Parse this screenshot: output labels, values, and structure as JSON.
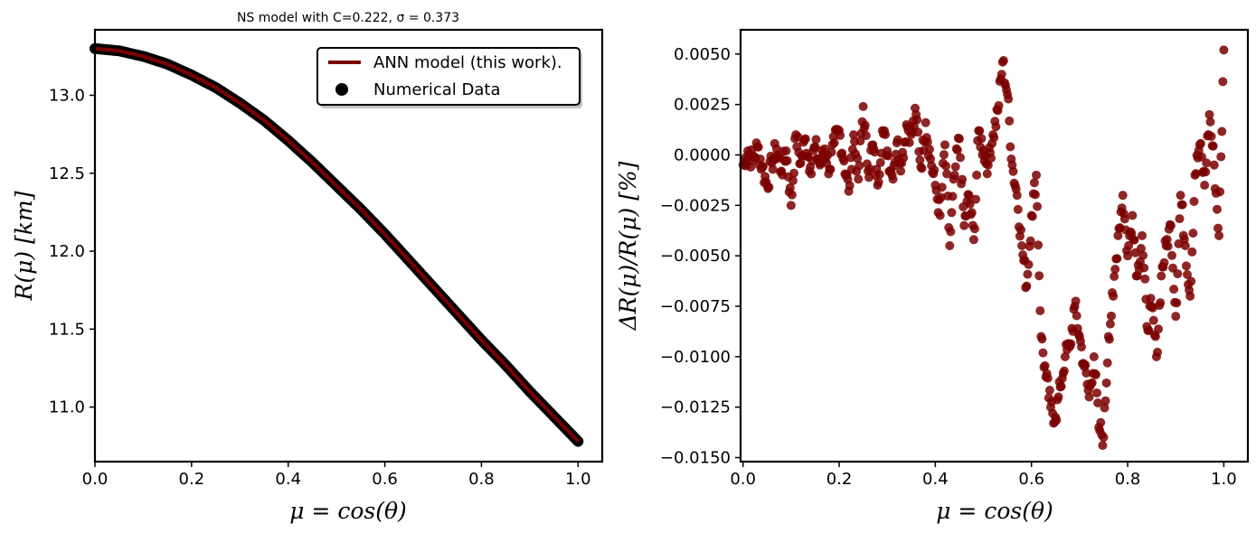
{
  "figure": {
    "title_left": "NS model with C=0.222, σ = 0.373"
  },
  "chart_data": [
    {
      "type": "line",
      "title": "NS model with C=0.222, σ = 0.373",
      "xlabel": "μ = cos(θ)",
      "ylabel": "R(μ) [km]",
      "xlim": [
        0.0,
        1.05
      ],
      "ylim": [
        10.65,
        13.42
      ],
      "xticks": [
        "0.0",
        "0.2",
        "0.4",
        "0.6",
        "0.8",
        "1.0"
      ],
      "yticks": [
        "11.0",
        "11.5",
        "12.0",
        "12.5",
        "13.0"
      ],
      "legend": {
        "position": "upper right",
        "entries": [
          "ANN model (this work).",
          "Numerical Data"
        ]
      },
      "series": [
        {
          "name": "ANN model (this work).",
          "kind": "line",
          "color": "#7b0000",
          "x": [
            0.0,
            0.05,
            0.1,
            0.15,
            0.2,
            0.25,
            0.3,
            0.35,
            0.4,
            0.45,
            0.5,
            0.55,
            0.6,
            0.65,
            0.7,
            0.75,
            0.8,
            0.85,
            0.9,
            0.95,
            1.0
          ],
          "y": [
            13.3,
            13.285,
            13.25,
            13.2,
            13.13,
            13.05,
            12.95,
            12.84,
            12.71,
            12.57,
            12.42,
            12.27,
            12.11,
            11.94,
            11.77,
            11.6,
            11.43,
            11.27,
            11.1,
            10.94,
            10.78
          ]
        },
        {
          "name": "Numerical Data",
          "kind": "scatter",
          "color": "#000000",
          "x": [
            0.0,
            0.05,
            0.1,
            0.15,
            0.2,
            0.25,
            0.3,
            0.35,
            0.4,
            0.45,
            0.5,
            0.55,
            0.6,
            0.65,
            0.7,
            0.75,
            0.8,
            0.85,
            0.9,
            0.95,
            1.0
          ],
          "y": [
            13.3,
            13.285,
            13.25,
            13.2,
            13.13,
            13.05,
            12.95,
            12.84,
            12.71,
            12.57,
            12.42,
            12.27,
            12.11,
            11.94,
            11.77,
            11.6,
            11.43,
            11.27,
            11.1,
            10.94,
            10.78
          ]
        }
      ]
    },
    {
      "type": "scatter",
      "xlabel": "μ = cos(θ)",
      "ylabel": "ΔR(μ)/R(μ) [%]",
      "xlim": [
        -0.005,
        1.05
      ],
      "ylim": [
        -0.0152,
        0.0062
      ],
      "xticks": [
        "0.0",
        "0.2",
        "0.4",
        "0.6",
        "0.8",
        "1.0"
      ],
      "yticks": [
        "0.0050",
        "0.0025",
        "0.0000",
        "−0.0025",
        "−0.0050",
        "−0.0075",
        "−0.0100",
        "−0.0125",
        "−0.0150"
      ],
      "series": [
        {
          "color": "#7b0000",
          "x": [
            0.0,
            0.01,
            0.02,
            0.03,
            0.04,
            0.05,
            0.06,
            0.07,
            0.08,
            0.09,
            0.1,
            0.11,
            0.12,
            0.13,
            0.14,
            0.15,
            0.16,
            0.17,
            0.18,
            0.19,
            0.2,
            0.21,
            0.22,
            0.23,
            0.24,
            0.25,
            0.26,
            0.27,
            0.28,
            0.29,
            0.3,
            0.31,
            0.32,
            0.33,
            0.34,
            0.35,
            0.36,
            0.37,
            0.38,
            0.39,
            0.4,
            0.41,
            0.42,
            0.43,
            0.44,
            0.45,
            0.46,
            0.47,
            0.48,
            0.49,
            0.5,
            0.51,
            0.52,
            0.53,
            0.54,
            0.55,
            0.56,
            0.57,
            0.58,
            0.59,
            0.6,
            0.61,
            0.62,
            0.63,
            0.64,
            0.65,
            0.66,
            0.67,
            0.68,
            0.69,
            0.7,
            0.71,
            0.72,
            0.73,
            0.74,
            0.75,
            0.76,
            0.77,
            0.78,
            0.79,
            0.8,
            0.81,
            0.82,
            0.83,
            0.84,
            0.85,
            0.86,
            0.87,
            0.88,
            0.89,
            0.9,
            0.91,
            0.92,
            0.93,
            0.94,
            0.95,
            0.96,
            0.97,
            0.98,
            0.99,
            1.0
          ],
          "y": [
            -0.0005,
            0.0002,
            -0.0003,
            0.0004,
            -0.0006,
            -0.0015,
            -0.0004,
            0.0003,
            -0.0008,
            0.0002,
            -0.0025,
            0.001,
            -0.0004,
            0.0008,
            -0.0006,
            0.0004,
            -0.0005,
            0.0003,
            -0.0007,
            0.0006,
            0.0012,
            -0.0003,
            -0.0018,
            0.001,
            -0.0012,
            0.0024,
            -0.0008,
            0.0005,
            -0.0015,
            0.0012,
            0.0002,
            -0.001,
            0.0006,
            -0.0004,
            0.0015,
            0.001,
            0.002,
            -0.0006,
            0.0016,
            -0.0002,
            -0.0015,
            -0.003,
            0.0005,
            -0.0045,
            -0.001,
            0.0008,
            -0.0035,
            -0.002,
            -0.0042,
            0.0012,
            0.0002,
            -0.0005,
            0.001,
            0.0022,
            0.0046,
            0.003,
            -0.0005,
            -0.002,
            -0.0045,
            -0.0065,
            -0.003,
            -0.001,
            -0.009,
            -0.011,
            -0.0125,
            -0.013,
            -0.0115,
            -0.01,
            -0.0095,
            -0.0075,
            -0.009,
            -0.0105,
            -0.012,
            -0.01,
            -0.0135,
            -0.014,
            -0.009,
            -0.007,
            -0.004,
            -0.002,
            -0.005,
            -0.003,
            -0.006,
            -0.004,
            -0.0085,
            -0.0075,
            -0.01,
            -0.006,
            -0.0045,
            -0.0035,
            -0.008,
            -0.002,
            -0.0045,
            -0.007,
            -0.001,
            0.0005,
            -0.0015,
            0.002,
            -0.0005,
            -0.004,
            0.0052
          ]
        }
      ]
    }
  ]
}
